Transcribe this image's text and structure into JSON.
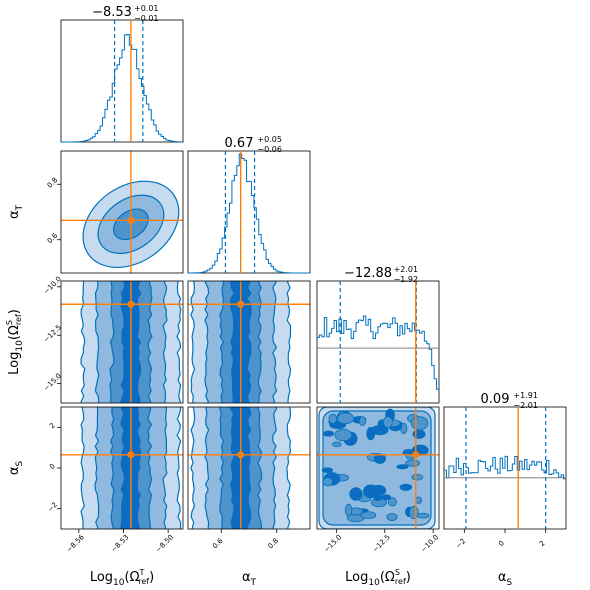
{
  "chart_data": {
    "type": "corner",
    "parameters": [
      {
        "symbol": "Log",
        "sub": "10",
        "arg": "Ω",
        "arg_sup": "T",
        "arg_sub": "ref"
      },
      {
        "symbol": "α",
        "sub": "T"
      },
      {
        "symbol": "Log",
        "sub": "10",
        "arg": "Ω",
        "arg_sup": "S",
        "arg_sub": "ref"
      },
      {
        "symbol": "α",
        "sub": "S"
      }
    ],
    "ranges": [
      [
        -8.572,
        -8.49
      ],
      [
        0.48,
        0.92
      ],
      [
        -16.0,
        -9.7
      ],
      [
        -3.0,
        3.0
      ]
    ],
    "ticks": [
      {
        "values": [
          -8.56,
          -8.53,
          -8.5
        ],
        "labels": [
          "−8.56",
          "−8.53",
          "−8.50"
        ]
      },
      {
        "values": [
          0.6,
          0.8
        ],
        "labels": [
          "0.6",
          "0.8"
        ]
      },
      {
        "values": [
          -15.0,
          -12.5,
          -10.0
        ],
        "labels": [
          "−15.0",
          "−12.5",
          "−10.0"
        ]
      },
      {
        "values": [
          -2,
          0,
          2
        ],
        "labels": [
          "−2",
          "0",
          "2"
        ]
      }
    ],
    "row_ticks": {
      "1": {
        "values": [
          0.6,
          0.8
        ],
        "labels": [
          "0.6",
          "0.8"
        ]
      },
      "2": {
        "values": [
          -15.0,
          -12.5,
          -10.0
        ],
        "labels": [
          "−15.0",
          "−12.5",
          "−10.0"
        ]
      },
      "3": {
        "values": [
          -2,
          0,
          2
        ],
        "labels": [
          "−2",
          "0",
          "2"
        ]
      }
    },
    "truths": [
      -8.525,
      0.67,
      -10.9,
      0.65
    ],
    "summaries": [
      {
        "median": "−8.53",
        "plus": "+0.01",
        "minus": "−0.01",
        "q16": -8.536,
        "q84": -8.517
      },
      {
        "median": "0.67",
        "plus": "+0.05",
        "minus": "−0.06",
        "q16": 0.615,
        "q84": 0.72
      },
      {
        "median": "−12.88",
        "plus": "+2.01",
        "minus": "−1.92",
        "q16": -14.8,
        "q84": -10.87
      },
      {
        "median": "0.09",
        "plus": "+1.91",
        "minus": "−2.01",
        "q16": -1.92,
        "q84": 2.0
      }
    ],
    "histograms": [
      {
        "kind": "gaussian",
        "mean": -8.527,
        "sd": 0.0095,
        "peak": 0.82
      },
      {
        "kind": "gaussian",
        "mean": 0.675,
        "sd": 0.045,
        "peak": 0.92
      },
      {
        "kind": "flat",
        "level": 0.62,
        "edge_fall": 0.7,
        "prior_level": 0.45
      },
      {
        "kind": "flat",
        "level": 0.52,
        "edge_fall": 0.2,
        "prior_level": 0.42
      }
    ],
    "colors": {
      "contour": "#0072bd",
      "fill": "#1f77b4",
      "truth": "#ff7f0e",
      "prior": "#808080",
      "axis": "#000000"
    },
    "grid": false
  }
}
